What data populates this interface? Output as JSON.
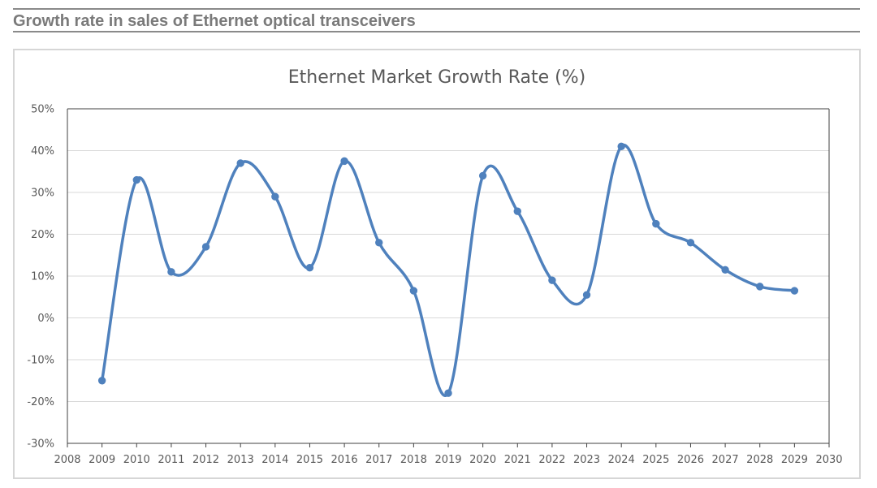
{
  "header": {
    "title": "Growth rate in sales of Ethernet optical transceivers"
  },
  "chart_data": {
    "type": "line",
    "smooth": true,
    "title": "Ethernet Market Growth Rate (%)",
    "xlabel": "",
    "ylabel": "",
    "x": [
      2009,
      2010,
      2011,
      2012,
      2013,
      2014,
      2015,
      2016,
      2017,
      2018,
      2019,
      2020,
      2021,
      2022,
      2023,
      2024,
      2025,
      2026,
      2027,
      2028,
      2029
    ],
    "series": [
      {
        "values": [
          -15,
          33,
          11,
          17,
          37,
          29,
          12,
          37.5,
          18,
          6.5,
          -18,
          34,
          25.5,
          9,
          5.5,
          41,
          22.5,
          18,
          11.5,
          7.5,
          6.5
        ],
        "color": "#4f81bd"
      }
    ],
    "xlim": [
      2008,
      2030
    ],
    "ylim": [
      -30,
      50
    ],
    "x_ticks": [
      "2008",
      "2009",
      "2010",
      "2011",
      "2012",
      "2013",
      "2014",
      "2015",
      "2016",
      "2017",
      "2018",
      "2019",
      "2020",
      "2021",
      "2022",
      "2023",
      "2024",
      "2025",
      "2026",
      "2027",
      "2028",
      "2029",
      "2030"
    ],
    "y_ticks": [
      "-30%",
      "-20%",
      "-10%",
      "0%",
      "10%",
      "20%",
      "30%",
      "40%",
      "50%"
    ],
    "grid": true,
    "legend": "none"
  }
}
